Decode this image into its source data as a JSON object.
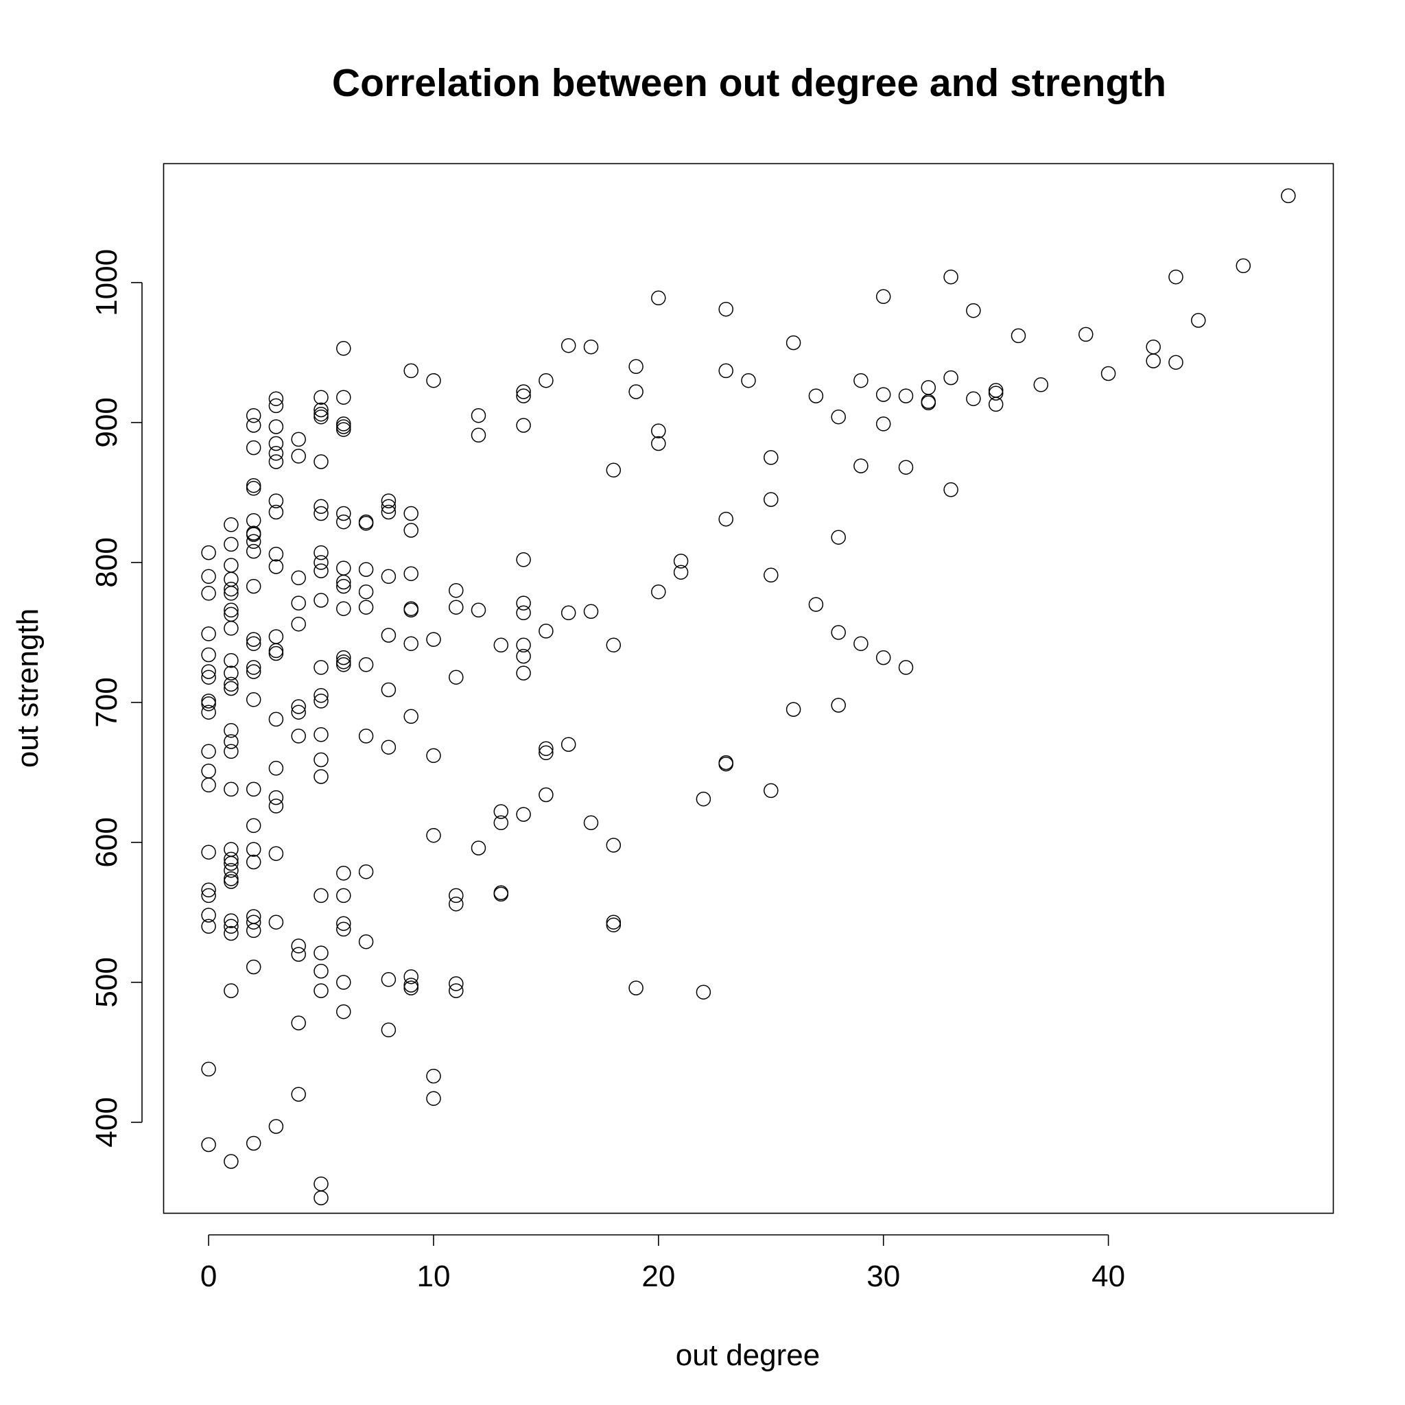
{
  "chart_data": {
    "type": "scatter",
    "title": "Correlation between out degree and strength",
    "xlabel": "out degree",
    "ylabel": "out strength",
    "xlim": [
      -2,
      50
    ],
    "ylim": [
      335,
      1085
    ],
    "xticks": [
      0,
      10,
      20,
      30,
      40
    ],
    "yticks": [
      400,
      500,
      600,
      700,
      800,
      900,
      1000
    ],
    "grid": false,
    "legend": "none",
    "marker": "open-circle",
    "colors": {
      "marker": "#000000",
      "axis": "#000000",
      "background": "#ffffff"
    },
    "points": [
      [
        0,
        807
      ],
      [
        0,
        790
      ],
      [
        0,
        778
      ],
      [
        0,
        749
      ],
      [
        0,
        734
      ],
      [
        0,
        722
      ],
      [
        0,
        718
      ],
      [
        0,
        701
      ],
      [
        0,
        699
      ],
      [
        0,
        693
      ],
      [
        0,
        665
      ],
      [
        0,
        651
      ],
      [
        0,
        641
      ],
      [
        0,
        593
      ],
      [
        0,
        566
      ],
      [
        0,
        562
      ],
      [
        0,
        548
      ],
      [
        0,
        540
      ],
      [
        0,
        438
      ],
      [
        0,
        384
      ],
      [
        1,
        827
      ],
      [
        1,
        813
      ],
      [
        1,
        798
      ],
      [
        1,
        788
      ],
      [
        1,
        781
      ],
      [
        1,
        778
      ],
      [
        1,
        766
      ],
      [
        1,
        763
      ],
      [
        1,
        753
      ],
      [
        1,
        730
      ],
      [
        1,
        721
      ],
      [
        1,
        713
      ],
      [
        1,
        710
      ],
      [
        1,
        680
      ],
      [
        1,
        672
      ],
      [
        1,
        665
      ],
      [
        1,
        638
      ],
      [
        1,
        595
      ],
      [
        1,
        588
      ],
      [
        1,
        585
      ],
      [
        1,
        580
      ],
      [
        1,
        574
      ],
      [
        1,
        572
      ],
      [
        1,
        544
      ],
      [
        1,
        540
      ],
      [
        1,
        535
      ],
      [
        1,
        494
      ],
      [
        1,
        372
      ],
      [
        2,
        905
      ],
      [
        2,
        898
      ],
      [
        2,
        882
      ],
      [
        2,
        855
      ],
      [
        2,
        853
      ],
      [
        2,
        830
      ],
      [
        2,
        821
      ],
      [
        2,
        820
      ],
      [
        2,
        815
      ],
      [
        2,
        808
      ],
      [
        2,
        783
      ],
      [
        2,
        745
      ],
      [
        2,
        742
      ],
      [
        2,
        725
      ],
      [
        2,
        722
      ],
      [
        2,
        702
      ],
      [
        2,
        638
      ],
      [
        2,
        612
      ],
      [
        2,
        595
      ],
      [
        2,
        586
      ],
      [
        2,
        547
      ],
      [
        2,
        543
      ],
      [
        2,
        537
      ],
      [
        2,
        511
      ],
      [
        2,
        385
      ],
      [
        3,
        917
      ],
      [
        3,
        912
      ],
      [
        3,
        897
      ],
      [
        3,
        885
      ],
      [
        3,
        878
      ],
      [
        3,
        872
      ],
      [
        3,
        844
      ],
      [
        3,
        836
      ],
      [
        3,
        806
      ],
      [
        3,
        797
      ],
      [
        3,
        747
      ],
      [
        3,
        737
      ],
      [
        3,
        735
      ],
      [
        3,
        688
      ],
      [
        3,
        653
      ],
      [
        3,
        632
      ],
      [
        3,
        626
      ],
      [
        3,
        592
      ],
      [
        3,
        543
      ],
      [
        3,
        397
      ],
      [
        4,
        888
      ],
      [
        4,
        876
      ],
      [
        4,
        789
      ],
      [
        4,
        771
      ],
      [
        4,
        756
      ],
      [
        4,
        697
      ],
      [
        4,
        693
      ],
      [
        4,
        676
      ],
      [
        4,
        526
      ],
      [
        4,
        520
      ],
      [
        4,
        471
      ],
      [
        4,
        420
      ],
      [
        5,
        918
      ],
      [
        5,
        909
      ],
      [
        5,
        906
      ],
      [
        5,
        904
      ],
      [
        5,
        872
      ],
      [
        5,
        840
      ],
      [
        5,
        835
      ],
      [
        5,
        807
      ],
      [
        5,
        800
      ],
      [
        5,
        794
      ],
      [
        5,
        773
      ],
      [
        5,
        725
      ],
      [
        5,
        705
      ],
      [
        5,
        701
      ],
      [
        5,
        677
      ],
      [
        5,
        659
      ],
      [
        5,
        647
      ],
      [
        5,
        562
      ],
      [
        5,
        521
      ],
      [
        5,
        508
      ],
      [
        5,
        494
      ],
      [
        5,
        356
      ],
      [
        5,
        346
      ],
      [
        6,
        953
      ],
      [
        6,
        918
      ],
      [
        6,
        899
      ],
      [
        6,
        897
      ],
      [
        6,
        895
      ],
      [
        6,
        835
      ],
      [
        6,
        829
      ],
      [
        6,
        796
      ],
      [
        6,
        786
      ],
      [
        6,
        783
      ],
      [
        6,
        767
      ],
      [
        6,
        732
      ],
      [
        6,
        729
      ],
      [
        6,
        727
      ],
      [
        6,
        578
      ],
      [
        6,
        562
      ],
      [
        6,
        542
      ],
      [
        6,
        538
      ],
      [
        6,
        500
      ],
      [
        6,
        479
      ],
      [
        7,
        829
      ],
      [
        7,
        828
      ],
      [
        7,
        795
      ],
      [
        7,
        779
      ],
      [
        7,
        768
      ],
      [
        7,
        727
      ],
      [
        7,
        676
      ],
      [
        7,
        579
      ],
      [
        7,
        529
      ],
      [
        8,
        844
      ],
      [
        8,
        840
      ],
      [
        8,
        836
      ],
      [
        8,
        790
      ],
      [
        8,
        748
      ],
      [
        8,
        709
      ],
      [
        8,
        668
      ],
      [
        8,
        502
      ],
      [
        8,
        466
      ],
      [
        9,
        937
      ],
      [
        9,
        835
      ],
      [
        9,
        823
      ],
      [
        9,
        792
      ],
      [
        9,
        767
      ],
      [
        9,
        766
      ],
      [
        9,
        742
      ],
      [
        9,
        690
      ],
      [
        9,
        504
      ],
      [
        9,
        498
      ],
      [
        9,
        496
      ],
      [
        10,
        930
      ],
      [
        10,
        745
      ],
      [
        10,
        662
      ],
      [
        10,
        605
      ],
      [
        10,
        433
      ],
      [
        10,
        417
      ],
      [
        11,
        780
      ],
      [
        11,
        768
      ],
      [
        11,
        718
      ],
      [
        11,
        562
      ],
      [
        11,
        556
      ],
      [
        11,
        499
      ],
      [
        11,
        494
      ],
      [
        12,
        905
      ],
      [
        12,
        891
      ],
      [
        12,
        766
      ],
      [
        12,
        596
      ],
      [
        13,
        741
      ],
      [
        13,
        622
      ],
      [
        13,
        614
      ],
      [
        13,
        564
      ],
      [
        13,
        563
      ],
      [
        14,
        922
      ],
      [
        14,
        919
      ],
      [
        14,
        898
      ],
      [
        14,
        802
      ],
      [
        14,
        771
      ],
      [
        14,
        764
      ],
      [
        14,
        741
      ],
      [
        14,
        733
      ],
      [
        14,
        721
      ],
      [
        14,
        620
      ],
      [
        15,
        930
      ],
      [
        15,
        751
      ],
      [
        15,
        667
      ],
      [
        15,
        664
      ],
      [
        15,
        634
      ],
      [
        16,
        955
      ],
      [
        16,
        764
      ],
      [
        16,
        670
      ],
      [
        17,
        954
      ],
      [
        17,
        765
      ],
      [
        17,
        614
      ],
      [
        18,
        866
      ],
      [
        18,
        741
      ],
      [
        18,
        598
      ],
      [
        18,
        543
      ],
      [
        18,
        541
      ],
      [
        19,
        940
      ],
      [
        19,
        922
      ],
      [
        19,
        496
      ],
      [
        20,
        989
      ],
      [
        20,
        894
      ],
      [
        20,
        885
      ],
      [
        20,
        779
      ],
      [
        21,
        801
      ],
      [
        21,
        793
      ],
      [
        22,
        631
      ],
      [
        22,
        493
      ],
      [
        23,
        981
      ],
      [
        23,
        937
      ],
      [
        23,
        831
      ],
      [
        23,
        657
      ],
      [
        23,
        656
      ],
      [
        24,
        930
      ],
      [
        25,
        875
      ],
      [
        25,
        845
      ],
      [
        25,
        791
      ],
      [
        25,
        637
      ],
      [
        26,
        957
      ],
      [
        26,
        695
      ],
      [
        27,
        919
      ],
      [
        27,
        770
      ],
      [
        28,
        904
      ],
      [
        28,
        818
      ],
      [
        28,
        750
      ],
      [
        28,
        698
      ],
      [
        29,
        930
      ],
      [
        29,
        869
      ],
      [
        29,
        742
      ],
      [
        30,
        990
      ],
      [
        30,
        920
      ],
      [
        30,
        899
      ],
      [
        30,
        732
      ],
      [
        31,
        919
      ],
      [
        31,
        868
      ],
      [
        31,
        725
      ],
      [
        32,
        925
      ],
      [
        32,
        915
      ],
      [
        32,
        914
      ],
      [
        33,
        1004
      ],
      [
        33,
        932
      ],
      [
        33,
        852
      ],
      [
        34,
        980
      ],
      [
        34,
        917
      ],
      [
        35,
        923
      ],
      [
        35,
        921
      ],
      [
        35,
        913
      ],
      [
        36,
        962
      ],
      [
        37,
        927
      ],
      [
        39,
        963
      ],
      [
        40,
        935
      ],
      [
        42,
        954
      ],
      [
        42,
        944
      ],
      [
        43,
        1004
      ],
      [
        43,
        943
      ],
      [
        44,
        973
      ],
      [
        46,
        1012
      ],
      [
        48,
        1062
      ]
    ]
  }
}
